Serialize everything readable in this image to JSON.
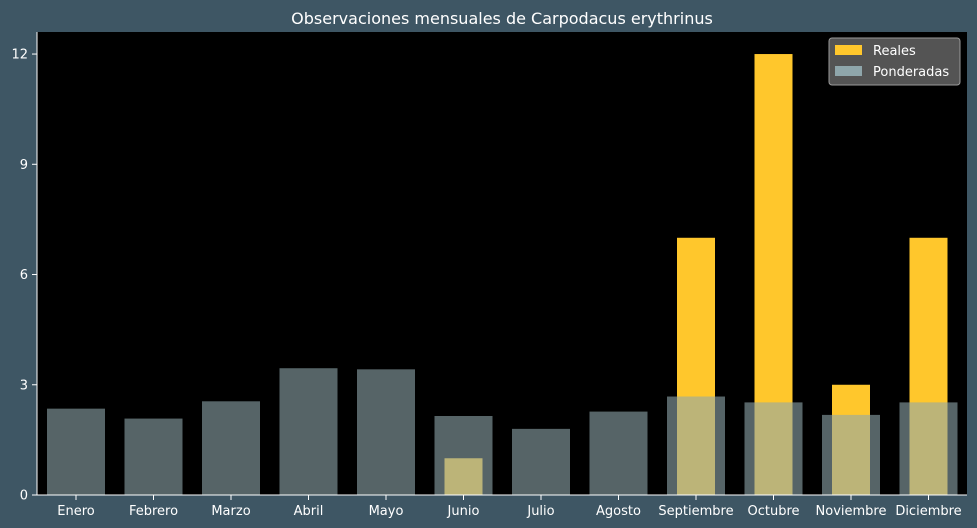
{
  "colors": {
    "figure_background": "#3e5664",
    "plot_background": "#000000",
    "text": "#ffffff",
    "reales": "#ffc72c",
    "ponderadas": "#8fa6ab",
    "legend_background": "#545454"
  },
  "chart_data": {
    "type": "bar",
    "title": "Observaciones mensuales de Carpodacus erythrinus",
    "xlabel": "",
    "ylabel": "",
    "categories": [
      "Enero",
      "Febrero",
      "Marzo",
      "Abril",
      "Mayo",
      "Junio",
      "Julio",
      "Agosto",
      "Septiembre",
      "Octubre",
      "Noviembre",
      "Diciembre"
    ],
    "series": [
      {
        "name": "Reales",
        "values": [
          0,
          0,
          0,
          0,
          0,
          1,
          0,
          0,
          7,
          12,
          3,
          7
        ]
      },
      {
        "name": "Ponderadas",
        "values": [
          2.35,
          2.08,
          2.55,
          3.45,
          3.42,
          2.15,
          1.8,
          2.27,
          2.68,
          2.52,
          2.18,
          2.52
        ]
      }
    ],
    "ylim": [
      0,
      12.6
    ],
    "yticks": [
      0,
      3,
      6,
      9,
      12
    ],
    "grid": false,
    "legend_position": "top-right"
  }
}
